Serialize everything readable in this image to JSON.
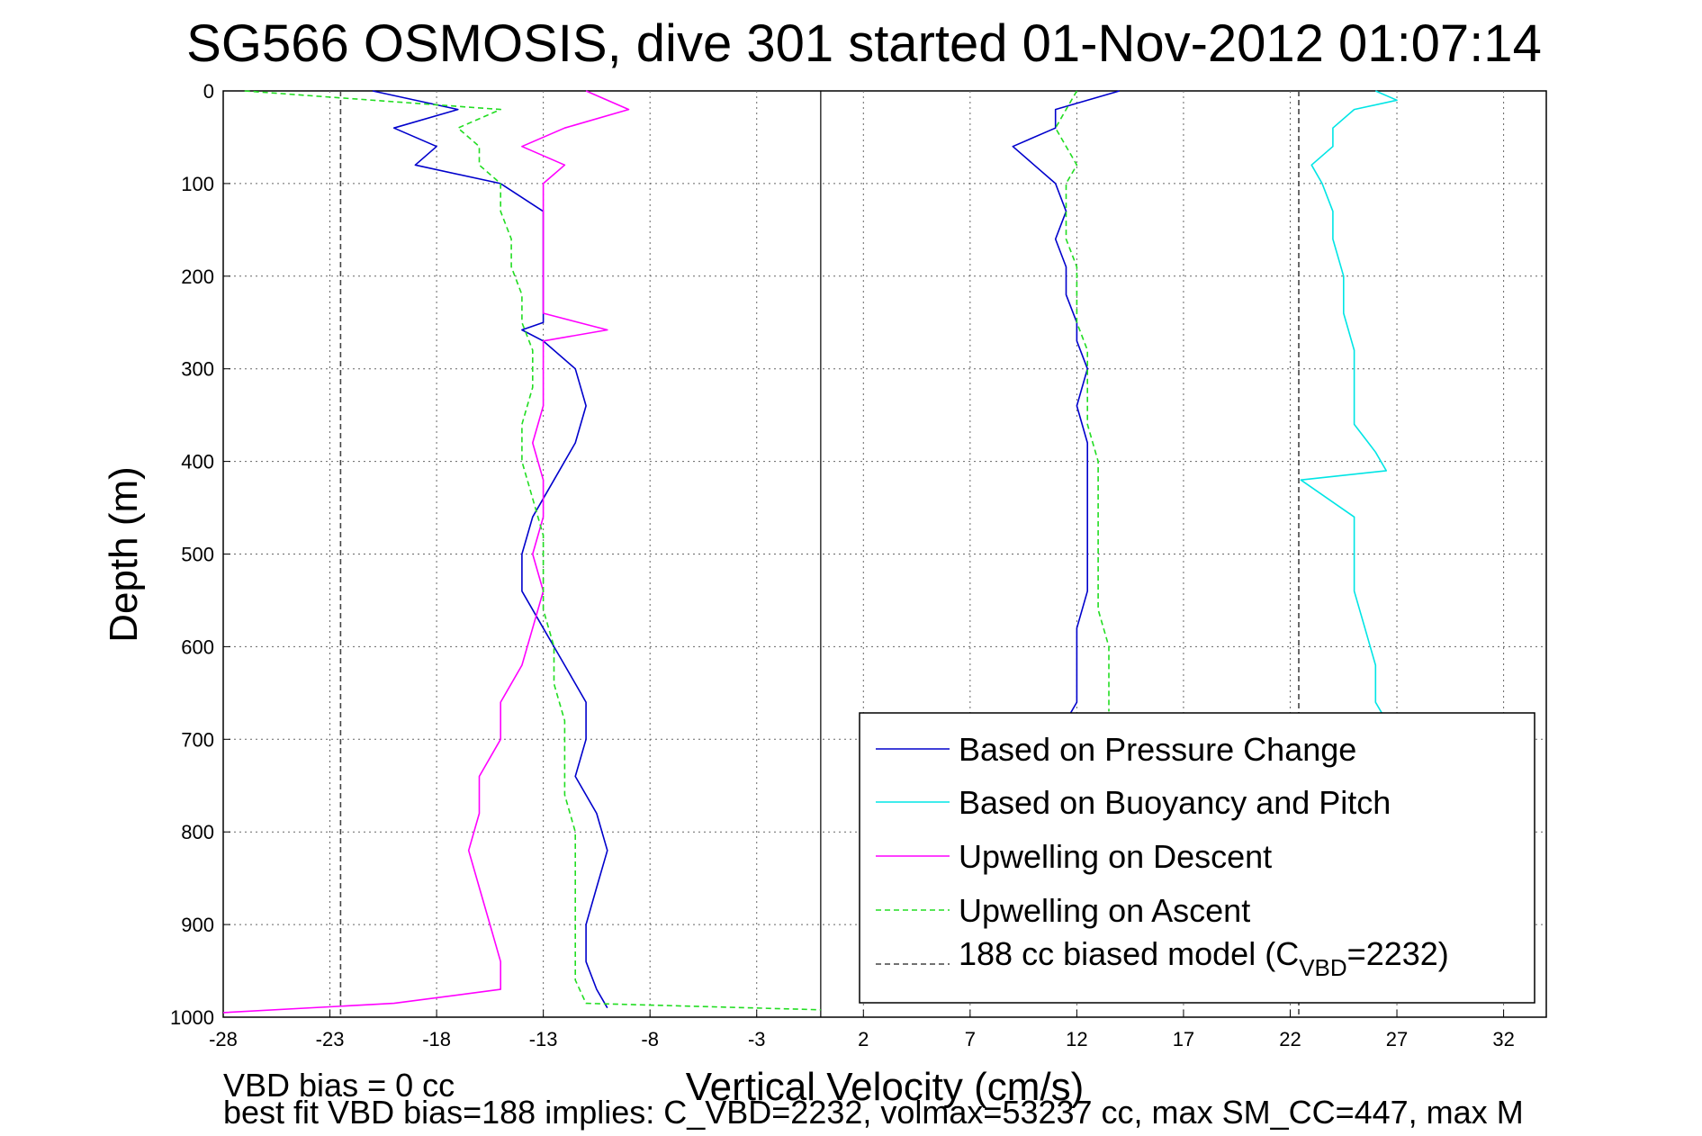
{
  "chart_data": {
    "type": "line",
    "title": "SG566 OSMOSIS, dive 301 started 01-Nov-2012 01:07:14",
    "xlabel": "Vertical Velocity (cm/s)",
    "ylabel": "Depth (m)",
    "xlim": [
      -28,
      34
    ],
    "ylim": [
      1000,
      0
    ],
    "y_reversed": true,
    "grid": true,
    "xticks": [
      -28,
      -23,
      -18,
      -13,
      -8,
      -3,
      2,
      7,
      12,
      17,
      22,
      27,
      32
    ],
    "yticks": [
      0,
      100,
      200,
      300,
      400,
      500,
      600,
      700,
      800,
      900,
      1000
    ],
    "legend_location": "bottom-right",
    "series": [
      {
        "name": "Based on Pressure Change",
        "color": "#0000cc",
        "style": "solid",
        "depth": [
          0,
          20,
          40,
          60,
          80,
          100,
          130,
          160,
          190,
          220,
          250,
          258,
          270,
          300,
          340,
          380,
          420,
          460,
          500,
          540,
          580,
          620,
          660,
          700,
          740,
          780,
          820,
          860,
          900,
          940,
          970,
          990
        ],
        "velocity": [
          -21,
          -17,
          -20,
          -18,
          -19,
          -15,
          -13,
          -13,
          -13,
          -13,
          -13,
          -14,
          -13,
          -11.5,
          -11,
          -11.5,
          -12.5,
          -13.5,
          -14,
          -14,
          -13,
          -12,
          -11,
          -11,
          -11.5,
          -10.5,
          -10,
          -10.5,
          -11,
          -11,
          -10.5,
          -10
        ]
      },
      {
        "name": "Based on Pressure Change",
        "color": "#0000cc",
        "style": "solid",
        "depth": [
          0,
          20,
          40,
          60,
          80,
          100,
          130,
          160,
          190,
          220,
          250,
          258,
          270,
          300,
          340,
          380,
          420,
          460,
          500,
          540,
          580,
          620,
          660,
          680
        ],
        "velocity": [
          14,
          11,
          11,
          9,
          10,
          11,
          11.5,
          11,
          11.5,
          11.5,
          12,
          12,
          12,
          12.5,
          12,
          12.5,
          12.5,
          12.5,
          12.5,
          12.5,
          12,
          12,
          12,
          11.5
        ]
      },
      {
        "name": "Based on Buoyancy and Pitch",
        "color": "#00e5e5",
        "style": "solid",
        "depth": [
          0,
          10,
          20,
          40,
          60,
          80,
          100,
          130,
          160,
          200,
          240,
          280,
          320,
          360,
          390,
          410,
          420,
          460,
          500,
          540,
          580,
          620,
          660,
          680
        ],
        "velocity": [
          26,
          27,
          25,
          24,
          24,
          23,
          23.5,
          24,
          24,
          24.5,
          24.5,
          25,
          25,
          25,
          26,
          26.5,
          22.5,
          25,
          25,
          25,
          25.5,
          26,
          26,
          26.5
        ]
      },
      {
        "name": "Upwelling on Descent",
        "color": "#ff00ff",
        "style": "solid",
        "depth": [
          0,
          20,
          40,
          60,
          80,
          100,
          130,
          160,
          190,
          210,
          240,
          258,
          270,
          300,
          340,
          380,
          420,
          460,
          500,
          540,
          580,
          620,
          660,
          700,
          740,
          780,
          820,
          860,
          900,
          940,
          970,
          985,
          995
        ],
        "velocity": [
          -11,
          -9,
          -12,
          -14,
          -12,
          -13,
          -13,
          -13,
          -13,
          -13,
          -13,
          -10,
          -13,
          -13,
          -13,
          -13.5,
          -13,
          -13,
          -13.5,
          -13,
          -13.5,
          -14,
          -15,
          -15,
          -16,
          -16,
          -16.5,
          -16,
          -15.5,
          -15,
          -15,
          -20,
          -28
        ]
      },
      {
        "name": "Upwelling on Ascent",
        "color": "#22dd22",
        "style": "dashed",
        "depth": [
          0,
          20,
          40,
          60,
          80,
          100,
          130,
          160,
          190,
          220,
          250,
          280,
          320,
          360,
          400,
          440,
          480,
          520,
          560,
          600,
          640,
          680,
          720,
          760,
          800,
          840,
          880,
          920,
          960,
          985,
          992
        ],
        "velocity": [
          -27,
          -15,
          -17,
          -16,
          -16,
          -15,
          -15,
          -14.5,
          -14.5,
          -14,
          -14,
          -13.5,
          -13.5,
          -14,
          -14,
          -13.5,
          -13,
          -13,
          -13,
          -12.5,
          -12.5,
          -12,
          -12,
          -12,
          -11.5,
          -11.5,
          -11.5,
          -11.5,
          -11.5,
          -11,
          0
        ]
      },
      {
        "name": "Upwelling on Ascent",
        "color": "#22dd22",
        "style": "dashed",
        "depth": [
          0,
          20,
          40,
          60,
          80,
          100,
          130,
          160,
          190,
          220,
          250,
          280,
          320,
          360,
          400,
          440,
          480,
          520,
          560,
          600,
          640,
          670
        ],
        "velocity": [
          12,
          11.5,
          11,
          11.5,
          12,
          11.5,
          11.5,
          11.5,
          12,
          12,
          12,
          12.5,
          12.5,
          12.5,
          13,
          13,
          13,
          13,
          13,
          13.5,
          13.5,
          13.5
        ]
      },
      {
        "name": "188 cc biased model (CVBD=2232)",
        "color": "#444444",
        "style": "dashed",
        "depth": [
          0,
          1000
        ],
        "velocity": [
          -22.5,
          -22.5
        ]
      },
      {
        "name": "188 cc biased model (CVBD=2232)",
        "color": "#444444",
        "style": "dashed",
        "depth": [
          0,
          1000
        ],
        "velocity": [
          22.4,
          22.4
        ]
      }
    ],
    "reference_line_x": 0
  },
  "legend": [
    {
      "label": "Based on Pressure Change",
      "color": "#0000cc",
      "style": "solid"
    },
    {
      "label": "Based on Buoyancy and Pitch",
      "color": "#00e5e5",
      "style": "solid"
    },
    {
      "label": "Upwelling on Descent",
      "color": "#ff00ff",
      "style": "solid"
    },
    {
      "label": "Upwelling on Ascent",
      "color": "#22dd22",
      "style": "dashed"
    },
    {
      "label_prefix": "188 cc biased model (C",
      "label_sub": "VBD",
      "label_suffix": "=2232)",
      "color": "#444444",
      "style": "dashed"
    }
  ],
  "footer": {
    "line1": "VBD bias = 0 cc",
    "line2": "best fit VBD bias=188 implies: C_VBD=2232, volmax=53237 cc, max SM_CC=447, max M"
  }
}
